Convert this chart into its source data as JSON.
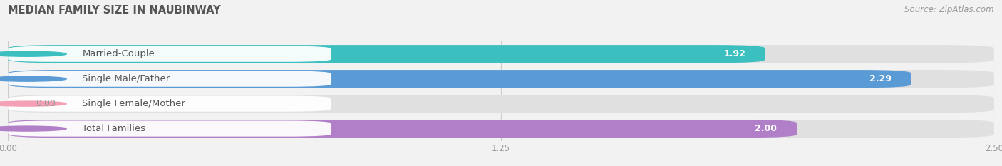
{
  "title": "MEDIAN FAMILY SIZE IN NAUBINWAY",
  "source": "Source: ZipAtlas.com",
  "categories": [
    "Married-Couple",
    "Single Male/Father",
    "Single Female/Mother",
    "Total Families"
  ],
  "values": [
    1.92,
    2.29,
    0.0,
    2.0
  ],
  "bar_colors": [
    "#3bbfbf",
    "#5b9bd5",
    "#f4a0b5",
    "#b07fc7"
  ],
  "xlim": [
    0,
    2.5
  ],
  "xticks": [
    0.0,
    1.25,
    2.5
  ],
  "xtick_labels": [
    "0.00",
    "1.25",
    "2.50"
  ],
  "bg_color": "#f2f2f2",
  "bar_bg_color": "#e0e0e0",
  "title_fontsize": 10.5,
  "source_fontsize": 8.5,
  "label_fontsize": 9.5,
  "value_fontsize": 9
}
